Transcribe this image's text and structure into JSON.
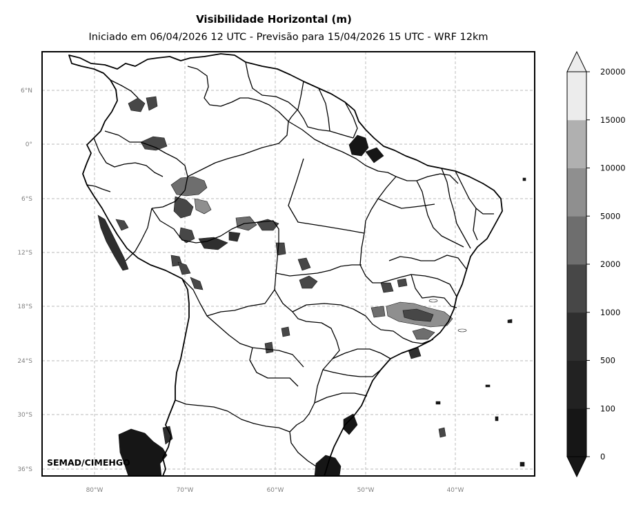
{
  "header": {
    "title": "Visibilidade Horizontal (m)",
    "subtitle": "Iniciado em 06/04/2026 12 UTC - Previsão para 15/04/2026 15 UTC - WRF 12km"
  },
  "axes": {
    "lat_labels": [
      "6°N",
      "0°",
      "6°S",
      "12°S",
      "18°S",
      "24°S",
      "30°S",
      "36°S"
    ],
    "lon_labels": [
      "80°W",
      "70°W",
      "60°W",
      "50°W",
      "40°W"
    ]
  },
  "map": {
    "region": "South America / Brazil",
    "projection": "PlateCarree",
    "grid": true,
    "gridline_style": "dashed",
    "borders": [
      "coastlines",
      "countries",
      "brazilian-states"
    ]
  },
  "colorbar": {
    "levels": [
      "0",
      "100",
      "500",
      "1000",
      "2000",
      "5000",
      "10000",
      "15000",
      "20000"
    ],
    "colors": [
      "#161616",
      "#222222",
      "#2f2f2f",
      "#474747",
      "#6e6e6e",
      "#8f8f8f",
      "#b0b0b0",
      "#ececec"
    ],
    "extend": "both"
  },
  "credit": "SEMAD/CIMEHGO"
}
